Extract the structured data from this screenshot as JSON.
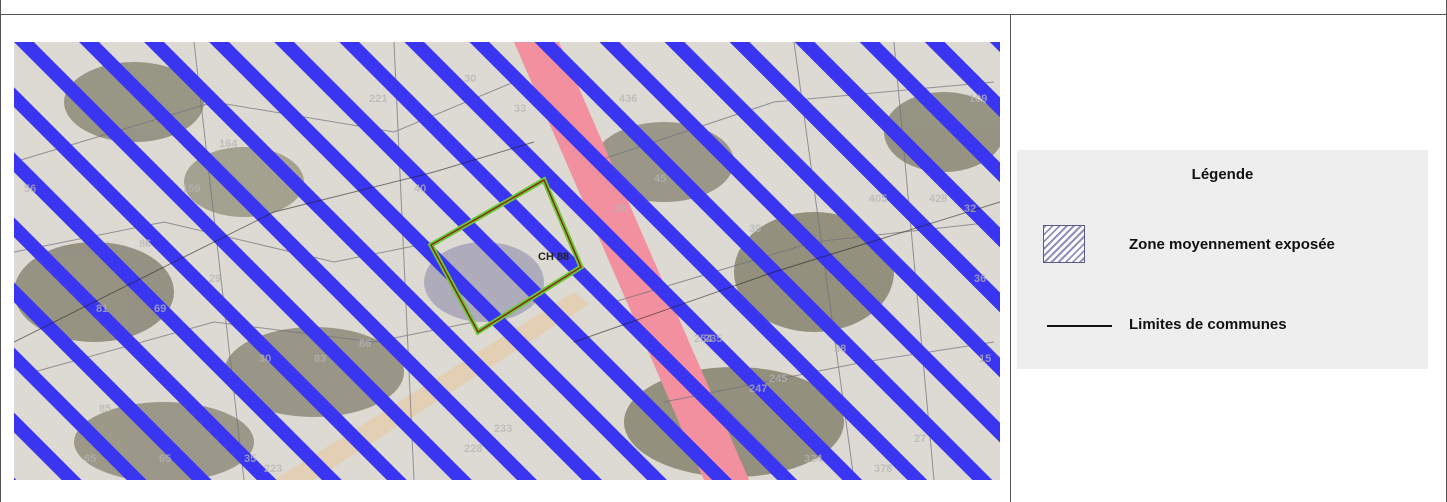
{
  "map": {
    "parcel_label": "CH 88",
    "parcel_numbers": [
      "56",
      "86",
      "159",
      "164",
      "29",
      "30",
      "86",
      "221",
      "81",
      "83",
      "30",
      "33",
      "40",
      "235",
      "436",
      "405",
      "428",
      "32",
      "39",
      "69",
      "85",
      "254",
      "36",
      "233",
      "245",
      "247",
      "38",
      "15",
      "109",
      "65",
      "65",
      "35",
      "223",
      "228",
      "45",
      "28",
      "324",
      "378",
      "27"
    ]
  },
  "legend": {
    "title": "Légende",
    "items": [
      {
        "label": "Zone moyennement exposée",
        "icon": "hatched-zone-swatch",
        "color": "#3030e0"
      },
      {
        "label": "Limites de communes",
        "icon": "black-line",
        "color": "#111111"
      }
    ]
  },
  "colors": {
    "hatch": "#3a35f0",
    "road": "#f08a9a",
    "parcel_outline_outer": "#66cc33",
    "parcel_outline_inner": "#8b2a1a"
  }
}
